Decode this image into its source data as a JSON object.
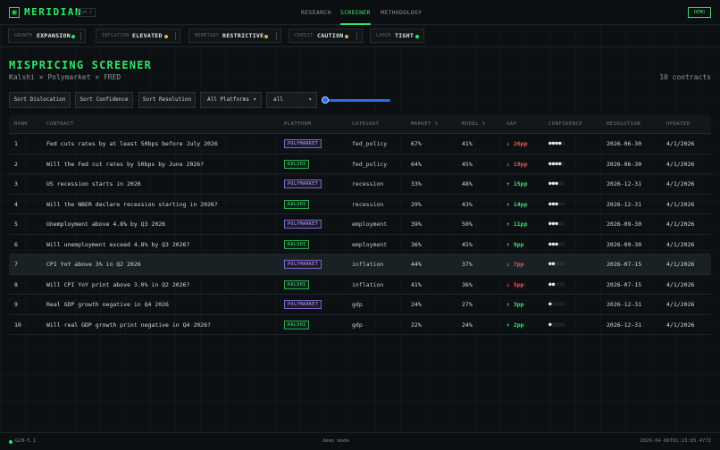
{
  "header": {
    "brand": "MERIDIAN",
    "version": "v0.1",
    "nav": [
      "RESEARCH",
      "SCREENER",
      "METHODOLOGY"
    ],
    "active_nav": "SCREENER",
    "demo_label": "DEMO"
  },
  "indicators": [
    {
      "key": "GROWTH",
      "value": "EXPANSION",
      "status_color": "#2ee66b"
    },
    {
      "key": "INFLATION",
      "value": "ELEVATED",
      "status_color": "#f2a93b"
    },
    {
      "key": "MONETARY",
      "value": "RESTRICTIVE",
      "status_color": "#f2a93b"
    },
    {
      "key": "CREDIT",
      "value": "CAUTION",
      "status_color": "#f2a93b"
    },
    {
      "key": "LABOR",
      "value": "TIGHT",
      "status_color": "#2ee66b"
    }
  ],
  "page": {
    "title": "MISPRICING SCREENER",
    "subtitle": "Kalshi × Polymarket × FRED",
    "count": "10 contracts"
  },
  "controls": {
    "sort_dislocation": "Sort Dislocation",
    "sort_confidence": "Sort Confidence",
    "sort_resolution": "Sort Resolution",
    "platform_select": "All Platforms",
    "category_select": "all",
    "slider_value": 0
  },
  "table": {
    "columns": [
      "RANK",
      "CONTRACT",
      "PLATFORM",
      "CATEGORY",
      "MARKET %",
      "MODEL %",
      "GAP",
      "CONFIDENCE",
      "RESOLUTION",
      "UPDATED"
    ],
    "rows": [
      {
        "rank": "1",
        "contract": "Fed cuts rates by at least 50bps before July 2026",
        "platform": "POLYMARKET",
        "category": "fed_policy",
        "market": "67%",
        "model": "41%",
        "gap": "↓ 26pp",
        "gap_dir": "neg",
        "confidence": 4,
        "resolution": "2026-06-30",
        "updated": "4/1/2026"
      },
      {
        "rank": "2",
        "contract": "Will the Fed cut rates by 50bps by June 2026?",
        "platform": "KALSHI",
        "category": "fed_policy",
        "market": "64%",
        "model": "45%",
        "gap": "↓ 19pp",
        "gap_dir": "neg",
        "confidence": 4,
        "resolution": "2026-06-30",
        "updated": "4/1/2026"
      },
      {
        "rank": "3",
        "contract": "US recession starts in 2026",
        "platform": "POLYMARKET",
        "category": "recession",
        "market": "33%",
        "model": "48%",
        "gap": "↑ 15pp",
        "gap_dir": "pos",
        "confidence": 3,
        "resolution": "2026-12-31",
        "updated": "4/1/2026"
      },
      {
        "rank": "4",
        "contract": "Will the NBER declare recession starting in 2026?",
        "platform": "KALSHI",
        "category": "recession",
        "market": "29%",
        "model": "43%",
        "gap": "↑ 14pp",
        "gap_dir": "pos",
        "confidence": 3,
        "resolution": "2026-12-31",
        "updated": "4/1/2026"
      },
      {
        "rank": "5",
        "contract": "Unemployment above 4.8% by Q3 2026",
        "platform": "POLYMARKET",
        "category": "employment",
        "market": "39%",
        "model": "50%",
        "gap": "↑ 11pp",
        "gap_dir": "pos",
        "confidence": 3,
        "resolution": "2026-09-30",
        "updated": "4/1/2026"
      },
      {
        "rank": "6",
        "contract": "Will unemployment exceed 4.8% by Q3 2026?",
        "platform": "KALSHI",
        "category": "employment",
        "market": "36%",
        "model": "45%",
        "gap": "↑ 9pp",
        "gap_dir": "pos",
        "confidence": 3,
        "resolution": "2026-09-30",
        "updated": "4/1/2026"
      },
      {
        "rank": "7",
        "contract": "CPI YoY above 3% in Q2 2026",
        "platform": "POLYMARKET",
        "category": "inflation",
        "market": "44%",
        "model": "37%",
        "gap": "↓ 7pp",
        "gap_dir": "neg",
        "confidence": 2,
        "resolution": "2026-07-15",
        "updated": "4/1/2026"
      },
      {
        "rank": "8",
        "contract": "Will CPI YoY print above 3.0% in Q2 2026?",
        "platform": "KALSHI",
        "category": "inflation",
        "market": "41%",
        "model": "36%",
        "gap": "↓ 5pp",
        "gap_dir": "neg",
        "confidence": 2,
        "resolution": "2026-07-15",
        "updated": "4/1/2026"
      },
      {
        "rank": "9",
        "contract": "Real GDP growth negative in Q4 2026",
        "platform": "POLYMARKET",
        "category": "gdp",
        "market": "24%",
        "model": "27%",
        "gap": "↑ 3pp",
        "gap_dir": "pos",
        "confidence": 1,
        "resolution": "2026-12-31",
        "updated": "4/1/2026"
      },
      {
        "rank": "10",
        "contract": "Will real GDP growth print negative in Q4 2026?",
        "platform": "KALSHI",
        "category": "gdp",
        "market": "22%",
        "model": "24%",
        "gap": "↑ 2pp",
        "gap_dir": "pos",
        "confidence": 1,
        "resolution": "2026-12-31",
        "updated": "4/1/2026"
      }
    ]
  },
  "footer": {
    "model": "GLM-5.1",
    "mode": "demo mode",
    "timestamp": "2026-04-06T01:23:05.477Z"
  }
}
